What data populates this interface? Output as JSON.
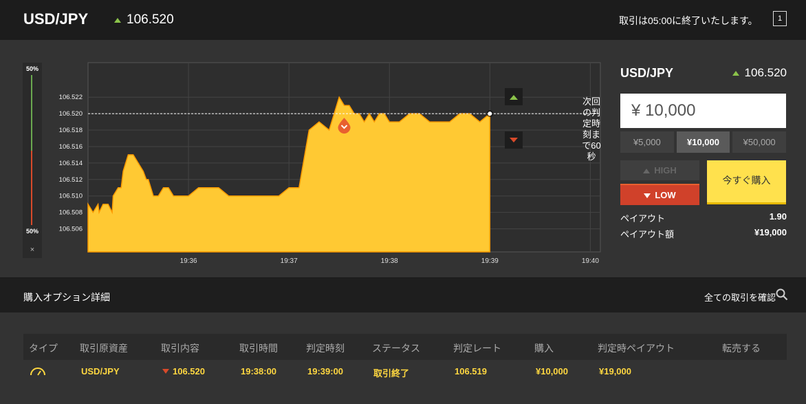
{
  "header": {
    "pair": "USD/JPY",
    "rate": "106.520",
    "notice": "取引は05:00に終了いたします。",
    "window_icon": "1"
  },
  "scale": {
    "top": "50%",
    "bottom": "50%",
    "close": "×"
  },
  "countdown": "次回の判定時刻まで60秒",
  "chart_data": {
    "type": "area",
    "y_ticks": [
      "106.522",
      "106.520",
      "106.518",
      "106.516",
      "106.514",
      "106.512",
      "106.510",
      "106.508",
      "106.506"
    ],
    "x_ticks": [
      "19:36",
      "19:37",
      "19:38",
      "19:39",
      "19:40"
    ],
    "ylim": [
      106.5032,
      106.5262
    ],
    "xlim": [
      0,
      5.1
    ],
    "x": [
      0,
      0.05,
      0.1,
      0.11,
      0.15,
      0.2,
      0.24,
      0.25,
      0.3,
      0.33,
      0.35,
      0.4,
      0.45,
      0.5,
      0.55,
      0.58,
      0.6,
      0.65,
      0.7,
      0.75,
      0.8,
      0.85,
      0.9,
      1.0,
      1.1,
      1.2,
      1.3,
      1.4,
      1.5,
      1.6,
      1.7,
      1.8,
      1.9,
      2.0,
      2.1,
      2.2,
      2.3,
      2.4,
      2.45,
      2.5,
      2.55,
      2.6,
      2.65,
      2.7,
      2.75,
      2.8,
      2.85,
      2.9,
      2.95,
      3.0,
      3.1,
      3.2,
      3.3,
      3.4,
      3.5,
      3.6,
      3.7,
      3.8,
      3.9,
      4.0
    ],
    "values": [
      106.509,
      106.508,
      106.509,
      106.508,
      106.509,
      106.509,
      106.508,
      106.51,
      106.511,
      106.511,
      106.513,
      106.515,
      106.515,
      106.514,
      106.513,
      106.512,
      106.512,
      106.51,
      106.51,
      106.511,
      106.511,
      106.51,
      106.51,
      106.51,
      106.511,
      106.511,
      106.511,
      106.51,
      106.51,
      106.51,
      106.51,
      106.51,
      106.51,
      106.511,
      106.511,
      106.518,
      106.519,
      106.518,
      106.52,
      106.522,
      106.521,
      106.521,
      106.52,
      106.52,
      106.519,
      106.52,
      106.519,
      106.52,
      106.52,
      106.519,
      106.519,
      106.52,
      106.52,
      106.519,
      106.519,
      106.519,
      106.52,
      106.52,
      106.519,
      106.52
    ],
    "reference_line": 106.52,
    "grid": true,
    "fill_color": "#ffc933",
    "line_color": "#ff9a00"
  },
  "order": {
    "pair": "USD/JPY",
    "rate": "106.520",
    "amount": "¥ 10,000",
    "presets": [
      "¥5,000",
      "¥10,000",
      "¥50,000"
    ],
    "high_label": "HIGH",
    "low_label": "LOW",
    "buy_label": "今すぐ購入",
    "payout_label": "ペイアウト",
    "payout_value": "1.90",
    "payout_amount_label": "ペイアウト額",
    "payout_amount_value": "¥19,000"
  },
  "details": {
    "title": "購入オプション詳細",
    "all_trades_link": "全ての取引を確認",
    "columns": [
      "タイプ",
      "取引原資産",
      "取引内容",
      "取引時間",
      "判定時刻",
      "ステータス",
      "判定レート",
      "購入",
      "判定時ペイアウト",
      "転売する"
    ],
    "row": {
      "asset": "USD/JPY",
      "content": "106.520",
      "trade_time": "19:38:00",
      "judge_time": "19:39:00",
      "status": "取引終了",
      "judge_rate": "106.519",
      "purchase": "¥10,000",
      "payout": "¥19,000"
    }
  },
  "colors": {
    "accent_yellow": "#ffe14d",
    "low_red": "#d0412a",
    "up_green": "#8bc34a"
  }
}
